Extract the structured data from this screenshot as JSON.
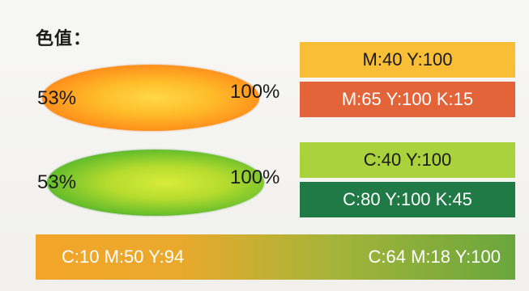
{
  "title": "色值：",
  "orange_group": {
    "left_pct": "53%",
    "right_pct": "100%",
    "swatch_top": {
      "label": "M:40  Y:100",
      "color": "#f7be36"
    },
    "swatch_bottom": {
      "label": "M:65 Y:100 K:15",
      "color": "#e26438"
    },
    "ellipse_colors": [
      "#ffd84a",
      "#ff8a1a",
      "#f06010"
    ]
  },
  "green_group": {
    "left_pct": "53%",
    "right_pct": "100%",
    "swatch_top": {
      "label": "C:40  Y:100",
      "color": "#a9d23c"
    },
    "swatch_bottom": {
      "label": "C:80 Y:100 K:45",
      "color": "#207a45"
    },
    "ellipse_colors": [
      "#d9ec3a",
      "#5ab92c",
      "#2f8e2c"
    ]
  },
  "gradient_bar": {
    "left_label": "C:10 M:50 Y:94",
    "right_label": "C:64 M:18 Y:100",
    "colors": [
      "#f3a52a",
      "#6aa63c"
    ]
  }
}
